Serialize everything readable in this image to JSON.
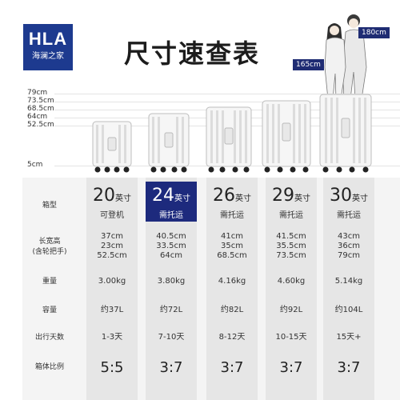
{
  "brand": {
    "logo_text": "HLA",
    "logo_subtext": "海澜之家"
  },
  "title": "尺寸速查表",
  "people": {
    "tall_label": "180cm",
    "short_label": "165cm"
  },
  "height_axis": [
    "79cm",
    "73.5cm",
    "68.5cm",
    "64cm",
    "52.5cm",
    "5cm"
  ],
  "row_labels": {
    "type": "箱型",
    "dims_line1": "长宽高",
    "dims_line2": "(含轮把手)",
    "weight": "重量",
    "capacity": "容量",
    "trip_days": "出行天数",
    "ratio": "箱体比例"
  },
  "unit_inch": "英寸",
  "highlight_color": "#1d2a7d",
  "sizes": [
    {
      "inch": "20",
      "usage": "可登机",
      "dims": [
        "37cm",
        "23cm",
        "52.5cm"
      ],
      "weight": "3.00kg",
      "capacity": "约37L",
      "trip_days": "1-3天",
      "ratio": "5:5",
      "highlight": false
    },
    {
      "inch": "24",
      "usage": "需托运",
      "dims": [
        "40.5cm",
        "33.5cm",
        "64cm"
      ],
      "weight": "3.80kg",
      "capacity": "约72L",
      "trip_days": "7-10天",
      "ratio": "3:7",
      "highlight": true
    },
    {
      "inch": "26",
      "usage": "需托运",
      "dims": [
        "41cm",
        "35cm",
        "68.5cm"
      ],
      "weight": "4.16kg",
      "capacity": "约82L",
      "trip_days": "8-12天",
      "ratio": "3:7",
      "highlight": false
    },
    {
      "inch": "29",
      "usage": "需托运",
      "dims": [
        "41.5cm",
        "35.5cm",
        "73.5cm"
      ],
      "weight": "4.60kg",
      "capacity": "约92L",
      "trip_days": "10-15天",
      "ratio": "3:7",
      "highlight": false
    },
    {
      "inch": "30",
      "usage": "需托运",
      "dims": [
        "43cm",
        "36cm",
        "79cm"
      ],
      "weight": "5.14kg",
      "capacity": "约104L",
      "trip_days": "15天+",
      "ratio": "3:7",
      "highlight": false
    }
  ]
}
